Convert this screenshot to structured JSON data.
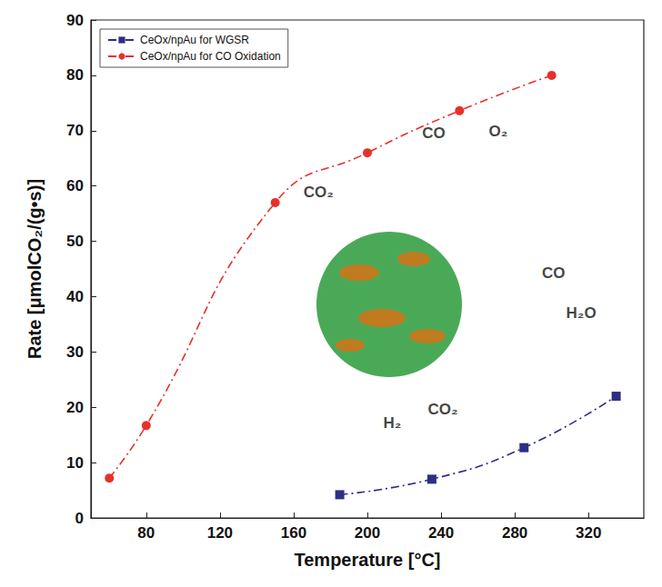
{
  "chart_data": {
    "type": "line",
    "x_label": "Temperature [°C]",
    "y_label": "Rate [μmolCO₂/(g•s)]",
    "xlim": [
      50,
      350
    ],
    "xticks": [
      80,
      120,
      160,
      200,
      240,
      280,
      320
    ],
    "ylim": [
      0,
      90
    ],
    "yticks": [
      0,
      10,
      20,
      30,
      40,
      50,
      60,
      70,
      80,
      90
    ],
    "grid": false,
    "legend": "upper left",
    "series": [
      {
        "name": "CeOx/npAu for WGSR",
        "color": "#2e2e86",
        "marker": "square",
        "line_style": "dashdot",
        "x": [
          185,
          235,
          285,
          335
        ],
        "values": [
          4.2,
          7.0,
          12.7,
          22.0
        ]
      },
      {
        "name": "CeOx/npAu for CO Oxidation",
        "color": "#e8302a",
        "marker": "circle",
        "line_style": "dashdot",
        "x": [
          60,
          80,
          150,
          200,
          250,
          300
        ],
        "values": [
          7.2,
          16.7,
          57.0,
          66.0,
          73.6,
          80.0
        ]
      }
    ],
    "annotations": [
      {
        "text": "CO",
        "x": 236,
        "y": 69.5
      },
      {
        "text": "O₂",
        "x": 271,
        "y": 69.8
      },
      {
        "text": "CO₂",
        "x": 173.5,
        "y": 58.8
      },
      {
        "text": "CO",
        "x": 301,
        "y": 44.3
      },
      {
        "text": "H₂O",
        "x": 316,
        "y": 37
      },
      {
        "text": "CO₂",
        "x": 241,
        "y": 19.7
      },
      {
        "text": "H₂",
        "x": 213.5,
        "y": 17.2
      }
    ]
  }
}
